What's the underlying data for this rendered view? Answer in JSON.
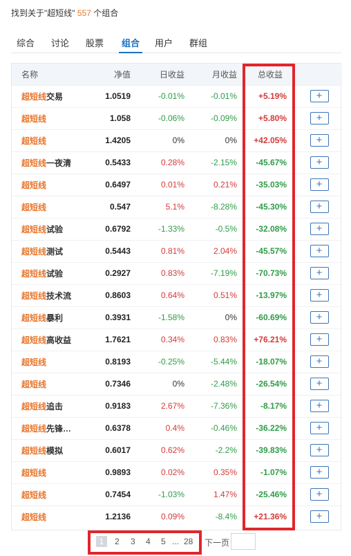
{
  "summary": {
    "prefix": "找到关于\"超短线\"",
    "count": "557",
    "suffix": "个组合"
  },
  "tabs": [
    "综合",
    "讨论",
    "股票",
    "组合",
    "用户",
    "群组"
  ],
  "active_tab": "组合",
  "table": {
    "headers": {
      "name": "名称",
      "nav": "净值",
      "daily": "日收益",
      "monthly": "月收益",
      "total": "总收益"
    },
    "add_label": "+",
    "rows": [
      {
        "kw": "超短线",
        "rest": "交易",
        "nav": "1.0519",
        "daily": "-0.01%",
        "monthly": "-0.01%",
        "total": "+5.19%"
      },
      {
        "kw": "超短线",
        "rest": "",
        "nav": "1.058",
        "daily": "-0.06%",
        "monthly": "-0.09%",
        "total": "+5.80%"
      },
      {
        "kw": "超短线",
        "rest": "",
        "nav": "1.4205",
        "daily": "0%",
        "monthly": "0%",
        "total": "+42.05%"
      },
      {
        "kw": "超短线",
        "rest": "一夜清",
        "nav": "0.5433",
        "daily": "0.28%",
        "monthly": "-2.15%",
        "total": "-45.67%"
      },
      {
        "kw": "超短线",
        "rest": "",
        "nav": "0.6497",
        "daily": "0.01%",
        "monthly": "0.21%",
        "total": "-35.03%"
      },
      {
        "kw": "超短线",
        "rest": "",
        "nav": "0.547",
        "daily": "5.1%",
        "monthly": "-8.28%",
        "total": "-45.30%"
      },
      {
        "kw": "超短线",
        "rest": "试验",
        "nav": "0.6792",
        "daily": "-1.33%",
        "monthly": "-0.5%",
        "total": "-32.08%"
      },
      {
        "kw": "超短线",
        "rest": "测试",
        "nav": "0.5443",
        "daily": "0.81%",
        "monthly": "2.04%",
        "total": "-45.57%"
      },
      {
        "kw": "超短线",
        "rest": "试验",
        "nav": "0.2927",
        "daily": "0.83%",
        "monthly": "-7.19%",
        "total": "-70.73%"
      },
      {
        "kw": "超短线",
        "rest": "技术流",
        "nav": "0.8603",
        "daily": "0.64%",
        "monthly": "0.51%",
        "total": "-13.97%"
      },
      {
        "kw": "超短线",
        "rest": "暴利",
        "nav": "0.3931",
        "daily": "-1.58%",
        "monthly": "0%",
        "total": "-60.69%"
      },
      {
        "kw": "超短线",
        "rest": "高收益",
        "nav": "1.7621",
        "daily": "0.34%",
        "monthly": "0.83%",
        "total": "+76.21%"
      },
      {
        "kw": "超短线",
        "rest": "",
        "nav": "0.8193",
        "daily": "-0.25%",
        "monthly": "-5.44%",
        "total": "-18.07%"
      },
      {
        "kw": "超短线",
        "rest": "",
        "nav": "0.7346",
        "daily": "0%",
        "monthly": "-2.48%",
        "total": "-26.54%"
      },
      {
        "kw": "超短线",
        "rest": "追击",
        "nav": "0.9183",
        "daily": "2.67%",
        "monthly": "-7.36%",
        "total": "-8.17%"
      },
      {
        "kw": "超短线",
        "rest": "先锋…",
        "nav": "0.6378",
        "daily": "0.4%",
        "monthly": "-0.46%",
        "total": "-36.22%"
      },
      {
        "kw": "超短线",
        "rest": "模拟",
        "nav": "0.6017",
        "daily": "0.62%",
        "monthly": "-2.2%",
        "total": "-39.83%"
      },
      {
        "kw": "超短线",
        "rest": "",
        "nav": "0.9893",
        "daily": "0.02%",
        "monthly": "0.35%",
        "total": "-1.07%"
      },
      {
        "kw": "超短线",
        "rest": "",
        "nav": "0.7454",
        "daily": "-1.03%",
        "monthly": "1.47%",
        "total": "-25.46%"
      },
      {
        "kw": "超短线",
        "rest": "",
        "nav": "1.2136",
        "daily": "0.09%",
        "monthly": "-8.4%",
        "total": "+21.36%"
      }
    ]
  },
  "pagination": {
    "pages": [
      "1",
      "2",
      "3",
      "4",
      "5"
    ],
    "ellipsis": "...",
    "last": "28",
    "current": "1",
    "next_label": "下一页"
  },
  "colors": {
    "keyword": "#e8762c",
    "positive": "#d43a3a",
    "negative": "#2e9c47",
    "highlight_frame": "#e0262b",
    "active_tab": "#1a6fc0"
  }
}
